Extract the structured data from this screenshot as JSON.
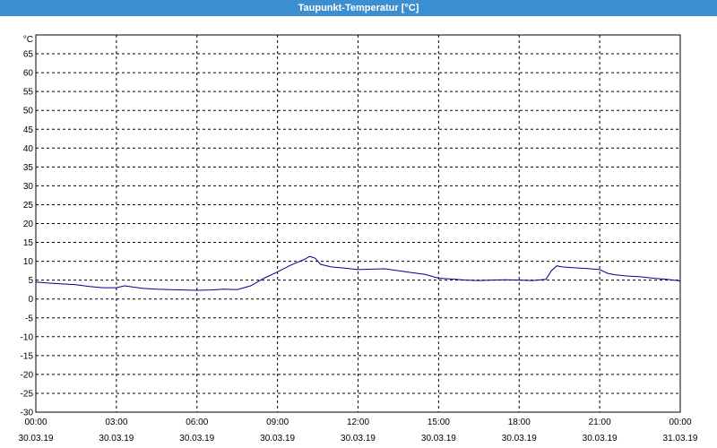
{
  "window": {
    "title": "Taupunkt-Temperatur [°C]"
  },
  "chart_data": {
    "type": "line",
    "title": "Taupunkt-Temperatur [°C]",
    "ylabel": "°C",
    "ylim": [
      -30,
      70
    ],
    "yticks": [
      65,
      60,
      55,
      50,
      45,
      40,
      35,
      30,
      25,
      20,
      15,
      10,
      5,
      0,
      -5,
      -10,
      -15,
      -20,
      -25,
      -30
    ],
    "xlim": [
      0,
      24
    ],
    "xticks": [
      {
        "x": 0,
        "time": "00:00",
        "date": "30.03.19"
      },
      {
        "x": 3,
        "time": "03:00",
        "date": "30.03.19"
      },
      {
        "x": 6,
        "time": "06:00",
        "date": "30.03.19"
      },
      {
        "x": 9,
        "time": "09:00",
        "date": "30.03.19"
      },
      {
        "x": 12,
        "time": "12:00",
        "date": "30.03.19"
      },
      {
        "x": 15,
        "time": "15:00",
        "date": "30.03.19"
      },
      {
        "x": 18,
        "time": "18:00",
        "date": "30.03.19"
      },
      {
        "x": 21,
        "time": "21:00",
        "date": "30.03.19"
      },
      {
        "x": 24,
        "time": "00:00",
        "date": "31.03.19"
      }
    ],
    "grid": true,
    "line_color": "#00008b",
    "series": [
      {
        "x": [
          0,
          0.5,
          1,
          1.5,
          2,
          2.5,
          3,
          3.3,
          3.6,
          4,
          4.5,
          5,
          5.5,
          6,
          6.5,
          7,
          7.5,
          8,
          8.5,
          9,
          9.5,
          10,
          10.2,
          10.4,
          10.6,
          11,
          11.5,
          12,
          12.5,
          13,
          13.5,
          14,
          14.5,
          15,
          15.5,
          16,
          16.5,
          17,
          17.5,
          18,
          18.5,
          19,
          19.2,
          19.4,
          19.6,
          20,
          20.5,
          21,
          21.3,
          21.6,
          22,
          22.5,
          23,
          23.5,
          24
        ],
        "y": [
          4.5,
          4.2,
          4.0,
          3.8,
          3.3,
          3.0,
          3.0,
          3.5,
          3.2,
          2.8,
          2.6,
          2.5,
          2.4,
          2.3,
          2.4,
          2.6,
          2.5,
          3.5,
          5.5,
          7.2,
          9.0,
          10.5,
          11.3,
          10.8,
          9.2,
          8.5,
          8.2,
          7.8,
          7.9,
          8.0,
          7.5,
          7.0,
          6.5,
          5.5,
          5.3,
          5.0,
          4.9,
          5.0,
          5.1,
          5.0,
          4.9,
          5.2,
          7.5,
          8.8,
          8.5,
          8.3,
          8.1,
          7.8,
          6.8,
          6.4,
          6.1,
          5.9,
          5.5,
          5.2,
          4.8
        ]
      }
    ]
  }
}
